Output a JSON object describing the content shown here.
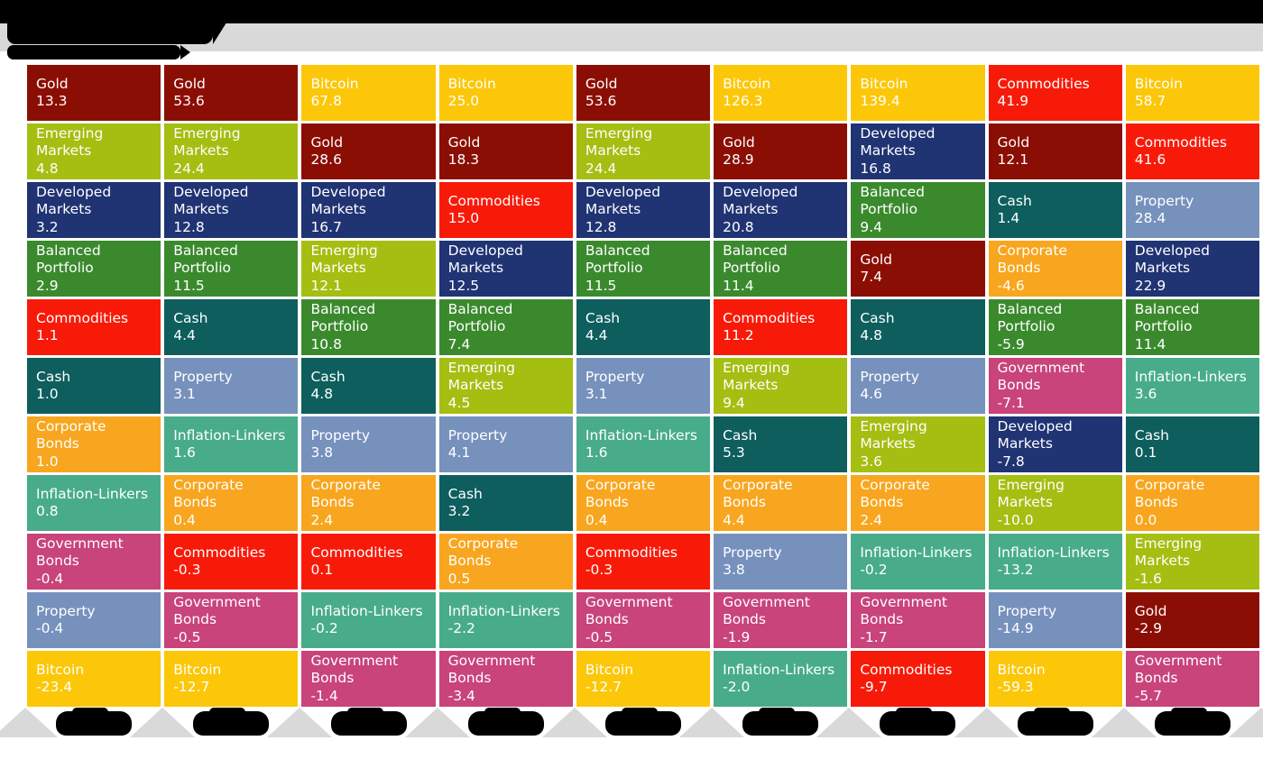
{
  "header": {
    "title_redacted": true,
    "subtitle_redacted": true,
    "bar_color": "#000000",
    "band_color": "#D9D9D9"
  },
  "asset_colors": {
    "Gold": "#8B0E04",
    "Emerging Markets": "#A4BE12",
    "Developed Markets": "#203373",
    "Balanced Portfolio": "#3A8A2D",
    "Commodities": "#F81A09",
    "Cash": "#0D5E5D",
    "Property": "#7791BD",
    "Corporate Bonds": "#F8A61F",
    "Inflation-Linkers": "#48AC8B",
    "Government Bonds": "#C8447A",
    "Bitcoin": "#FBC708"
  },
  "chart_data": {
    "type": "table",
    "subtype": "asset-class-returns-quilt",
    "title_redacted": true,
    "x_axis_year_labels_redacted": true,
    "columns_count": 9,
    "rows_per_column": 11,
    "columns": [
      {
        "entries": [
          {
            "asset": "Gold",
            "value": "13.3"
          },
          {
            "asset": "Emerging Markets",
            "value": "4.8"
          },
          {
            "asset": "Developed Markets",
            "value": "3.2"
          },
          {
            "asset": "Balanced Portfolio",
            "value": "2.9"
          },
          {
            "asset": "Commodities",
            "value": "1.1"
          },
          {
            "asset": "Cash",
            "value": "1.0"
          },
          {
            "asset": "Corporate Bonds",
            "value": "1.0"
          },
          {
            "asset": "Inflation-Linkers",
            "value": "0.8"
          },
          {
            "asset": "Government Bonds",
            "value": "-0.4"
          },
          {
            "asset": "Property",
            "value": "-0.4"
          },
          {
            "asset": "Bitcoin",
            "value": "-23.4"
          }
        ]
      },
      {
        "entries": [
          {
            "asset": "Gold",
            "value": "53.6"
          },
          {
            "asset": "Emerging Markets",
            "value": "24.4"
          },
          {
            "asset": "Developed Markets",
            "value": "12.8"
          },
          {
            "asset": "Balanced Portfolio",
            "value": "11.5"
          },
          {
            "asset": "Cash",
            "value": "4.4"
          },
          {
            "asset": "Property",
            "value": "3.1"
          },
          {
            "asset": "Inflation-Linkers",
            "value": "1.6"
          },
          {
            "asset": "Corporate Bonds",
            "value": "0.4"
          },
          {
            "asset": "Commodities",
            "value": "-0.3"
          },
          {
            "asset": "Government Bonds",
            "value": "-0.5"
          },
          {
            "asset": "Bitcoin",
            "value": "-12.7"
          }
        ]
      },
      {
        "entries": [
          {
            "asset": "Bitcoin",
            "value": "67.8"
          },
          {
            "asset": "Gold",
            "value": "28.6"
          },
          {
            "asset": "Developed Markets",
            "value": "16.7"
          },
          {
            "asset": "Emerging Markets",
            "value": "12.1"
          },
          {
            "asset": "Balanced Portfolio",
            "value": "10.8"
          },
          {
            "asset": "Cash",
            "value": "4.8"
          },
          {
            "asset": "Property",
            "value": "3.8"
          },
          {
            "asset": "Corporate Bonds",
            "value": "2.4"
          },
          {
            "asset": "Commodities",
            "value": "0.1"
          },
          {
            "asset": "Inflation-Linkers",
            "value": "-0.2"
          },
          {
            "asset": "Government Bonds",
            "value": "-1.4"
          }
        ]
      },
      {
        "entries": [
          {
            "asset": "Bitcoin",
            "value": "25.0"
          },
          {
            "asset": "Gold",
            "value": "18.3"
          },
          {
            "asset": "Commodities",
            "value": "15.0"
          },
          {
            "asset": "Developed Markets",
            "value": "12.5"
          },
          {
            "asset": "Balanced Portfolio",
            "value": "7.4"
          },
          {
            "asset": "Emerging Markets",
            "value": "4.5"
          },
          {
            "asset": "Property",
            "value": "4.1"
          },
          {
            "asset": "Cash",
            "value": "3.2"
          },
          {
            "asset": "Corporate Bonds",
            "value": "0.5"
          },
          {
            "asset": "Inflation-Linkers",
            "value": "-2.2"
          },
          {
            "asset": "Government Bonds",
            "value": "-3.4"
          }
        ]
      },
      {
        "entries": [
          {
            "asset": "Gold",
            "value": "53.6"
          },
          {
            "asset": "Emerging Markets",
            "value": "24.4"
          },
          {
            "asset": "Developed Markets",
            "value": "12.8"
          },
          {
            "asset": "Balanced Portfolio",
            "value": "11.5"
          },
          {
            "asset": "Cash",
            "value": "4.4"
          },
          {
            "asset": "Property",
            "value": "3.1"
          },
          {
            "asset": "Inflation-Linkers",
            "value": "1.6"
          },
          {
            "asset": "Corporate Bonds",
            "value": "0.4"
          },
          {
            "asset": "Commodities",
            "value": "-0.3"
          },
          {
            "asset": "Government Bonds",
            "value": "-0.5"
          },
          {
            "asset": "Bitcoin",
            "value": "-12.7"
          }
        ]
      },
      {
        "entries": [
          {
            "asset": "Bitcoin",
            "value": "126.3"
          },
          {
            "asset": "Gold",
            "value": "28.9"
          },
          {
            "asset": "Developed Markets",
            "value": "20.8"
          },
          {
            "asset": "Balanced Portfolio",
            "value": "11.4"
          },
          {
            "asset": "Commodities",
            "value": "11.2"
          },
          {
            "asset": "Emerging Markets",
            "value": "9.4"
          },
          {
            "asset": "Cash",
            "value": "5.3"
          },
          {
            "asset": "Corporate Bonds",
            "value": "4.4"
          },
          {
            "asset": "Property",
            "value": "3.8"
          },
          {
            "asset": "Government Bonds",
            "value": "-1.9"
          },
          {
            "asset": "Inflation-Linkers",
            "value": "-2.0"
          }
        ]
      },
      {
        "entries": [
          {
            "asset": "Bitcoin",
            "value": "139.4"
          },
          {
            "asset": "Developed Markets",
            "value": "16.8"
          },
          {
            "asset": "Balanced Portfolio",
            "value": "9.4"
          },
          {
            "asset": "Gold",
            "value": "7.4"
          },
          {
            "asset": "Cash",
            "value": "4.8"
          },
          {
            "asset": "Property",
            "value": "4.6"
          },
          {
            "asset": "Emerging Markets",
            "value": "3.6"
          },
          {
            "asset": "Corporate Bonds",
            "value": "2.4"
          },
          {
            "asset": "Inflation-Linkers",
            "value": "-0.2"
          },
          {
            "asset": "Government Bonds",
            "value": "-1.7"
          },
          {
            "asset": "Commodities",
            "value": "-9.7"
          }
        ]
      },
      {
        "entries": [
          {
            "asset": "Commodities",
            "value": "41.9"
          },
          {
            "asset": "Gold",
            "value": "12.1"
          },
          {
            "asset": "Cash",
            "value": "1.4"
          },
          {
            "asset": "Corporate Bonds",
            "value": "-4.6"
          },
          {
            "asset": "Balanced Portfolio",
            "value": "-5.9"
          },
          {
            "asset": "Government Bonds",
            "value": "-7.1"
          },
          {
            "asset": "Developed Markets",
            "value": "-7.8"
          },
          {
            "asset": "Emerging Markets",
            "value": "-10.0"
          },
          {
            "asset": "Inflation-Linkers",
            "value": "-13.2"
          },
          {
            "asset": "Property",
            "value": "-14.9"
          },
          {
            "asset": "Bitcoin",
            "value": "-59.3"
          }
        ]
      },
      {
        "entries": [
          {
            "asset": "Bitcoin",
            "value": "58.7"
          },
          {
            "asset": "Commodities",
            "value": "41.6"
          },
          {
            "asset": "Property",
            "value": "28.4"
          },
          {
            "asset": "Developed Markets",
            "value": "22.9"
          },
          {
            "asset": "Balanced Portfolio",
            "value": "11.4"
          },
          {
            "asset": "Inflation-Linkers",
            "value": "3.6"
          },
          {
            "asset": "Cash",
            "value": "0.1"
          },
          {
            "asset": "Corporate Bonds",
            "value": "0.0"
          },
          {
            "asset": "Emerging Markets",
            "value": "-1.6"
          },
          {
            "asset": "Gold",
            "value": "-2.9"
          },
          {
            "asset": "Government Bonds",
            "value": "-5.7"
          }
        ]
      }
    ]
  }
}
